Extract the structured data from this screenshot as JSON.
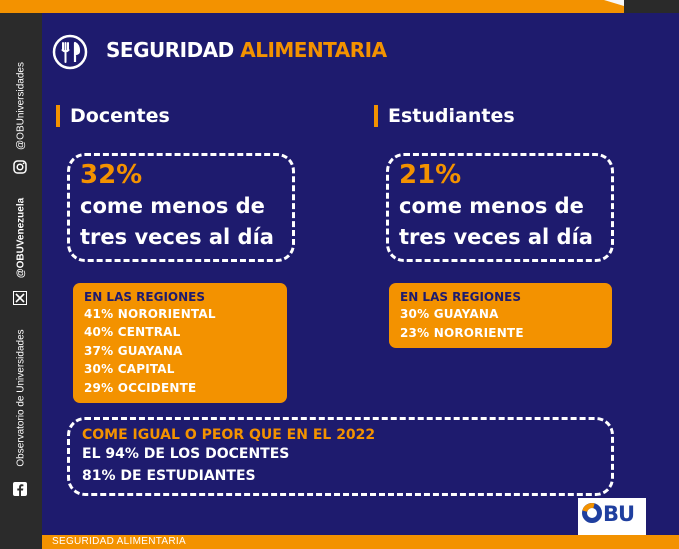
{
  "header": {
    "title_part1": "SEGURIDAD",
    "title_part2": "ALIMENTARIA",
    "icon": "plate-cutlery-icon"
  },
  "docentes": {
    "heading": "Docentes",
    "percent": "32%",
    "line1": "come menos de",
    "line2": "tres veces al día",
    "regions_title": "EN LAS REGIONES",
    "regions": [
      "41% NORORIENTAL",
      "40% CENTRAL",
      "37% GUAYANA",
      "30% CAPITAL",
      "29% OCCIDENTE"
    ]
  },
  "estudiantes": {
    "heading": "Estudiantes",
    "percent": "21%",
    "line1": "come menos de",
    "line2": "tres veces al día",
    "regions_title": "EN LAS REGIONES",
    "regions": [
      "30% GUAYANA",
      "23% NORORIENTE"
    ]
  },
  "comparison": {
    "title": "COME IGUAL O PEOR QUE EN EL 2022",
    "line1": "EL 94% DE LOS DOCENTES",
    "line2": "81% DE ESTUDIANTES"
  },
  "sidebar": {
    "instagram": "@OBUniversidades",
    "x_handle": "@OBUVenezuela",
    "facebook": "Observatorio de Universidades"
  },
  "footer": {
    "label": "SEGURIDAD ALIMENTARIA"
  },
  "logo": {
    "text": "BU"
  },
  "colors": {
    "background": "#1e1b6e",
    "accent": "#f39200",
    "sidebar": "#2b2b2b",
    "logo_blue": "#1f3f9f"
  }
}
